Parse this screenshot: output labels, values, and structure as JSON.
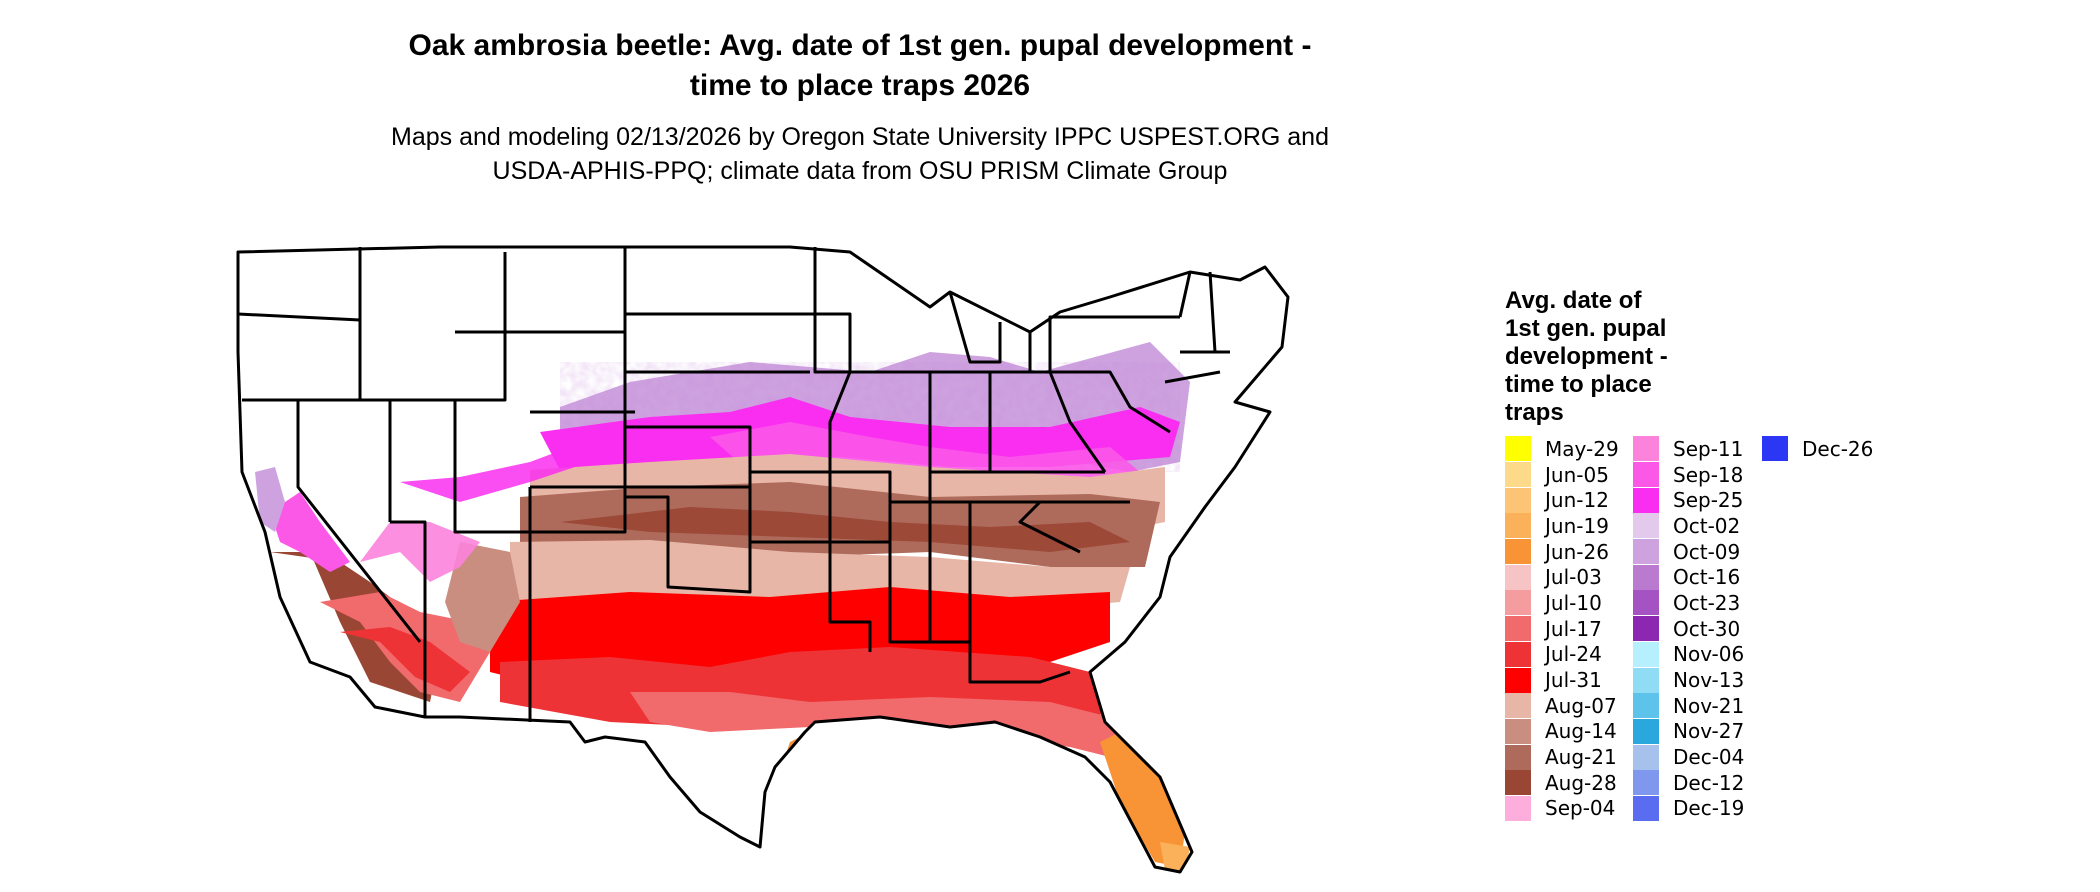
{
  "title_line1": "Oak ambrosia beetle: Avg. date of 1st gen. pupal development -",
  "title_line2": "time to place traps 2026",
  "subtitle_line1": "Maps and modeling 02/13/2026 by Oregon State University IPPC USPEST.ORG and",
  "subtitle_line2": "USDA-APHIS-PPQ; climate data from OSU PRISM Climate Group",
  "legend": {
    "title_lines": [
      "Avg. date of",
      "1st gen. pupal",
      "development -",
      "time to place",
      "traps"
    ],
    "columns": [
      [
        {
          "label": "May-29",
          "color": "#ffff00"
        },
        {
          "label": "Jun-05",
          "color": "#fdd98a"
        },
        {
          "label": "Jun-12",
          "color": "#fcc475"
        },
        {
          "label": "Jun-19",
          "color": "#fbb05a"
        },
        {
          "label": "Jun-26",
          "color": "#f99436"
        },
        {
          "label": "Jul-03",
          "color": "#f7c4c6"
        },
        {
          "label": "Jul-10",
          "color": "#f49c9e"
        },
        {
          "label": "Jul-17",
          "color": "#f16a6c"
        },
        {
          "label": "Jul-24",
          "color": "#ee3337"
        },
        {
          "label": "Jul-31",
          "color": "#fe0000"
        },
        {
          "label": "Aug-07",
          "color": "#e8b6a7"
        },
        {
          "label": "Aug-14",
          "color": "#c98e7f"
        },
        {
          "label": "Aug-21",
          "color": "#ae6b5c"
        },
        {
          "label": "Aug-28",
          "color": "#9a4634"
        },
        {
          "label": "Sep-04",
          "color": "#fdaedc"
        }
      ],
      [
        {
          "label": "Sep-11",
          "color": "#fc83dc"
        },
        {
          "label": "Sep-18",
          "color": "#fb58e8"
        },
        {
          "label": "Sep-25",
          "color": "#f92ef0"
        },
        {
          "label": "Oct-02",
          "color": "#e3c9ec"
        },
        {
          "label": "Oct-09",
          "color": "#cea2df"
        },
        {
          "label": "Oct-16",
          "color": "#b97ad0"
        },
        {
          "label": "Oct-23",
          "color": "#a552c3"
        },
        {
          "label": "Oct-30",
          "color": "#8c27b2"
        },
        {
          "label": "Nov-06",
          "color": "#b6effd"
        },
        {
          "label": "Nov-13",
          "color": "#8fdcf4"
        },
        {
          "label": "Nov-21",
          "color": "#5ec3ea"
        },
        {
          "label": "Nov-27",
          "color": "#2aa8dd"
        },
        {
          "label": "Dec-04",
          "color": "#a6c2ec"
        },
        {
          "label": "Dec-12",
          "color": "#7f97ec"
        },
        {
          "label": "Dec-19",
          "color": "#5a6cf0"
        }
      ],
      [
        {
          "label": "Dec-26",
          "color": "#2c36f5"
        }
      ]
    ]
  }
}
